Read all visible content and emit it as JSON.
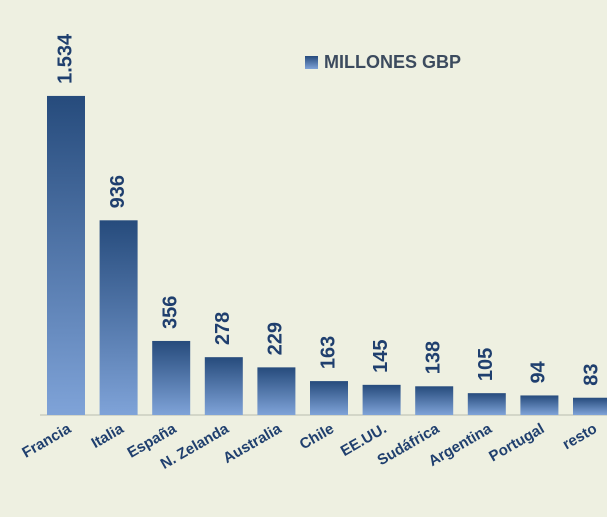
{
  "chart_data": {
    "type": "bar",
    "categories": [
      "Francia",
      "Italia",
      "España",
      "N. Zelanda",
      "Australia",
      "Chile",
      "EE.UU.",
      "Sudáfrica",
      "Argentina",
      "Portugal",
      "resto"
    ],
    "series": [
      {
        "name": "MILLONES GBP",
        "color": "#2f5a91",
        "values": [
          1534,
          936,
          356,
          278,
          229,
          163,
          145,
          138,
          105,
          94,
          83
        ],
        "value_labels": [
          "1.534",
          "936",
          "356",
          "278",
          "229",
          "163",
          "145",
          "138",
          "105",
          "94",
          "83"
        ]
      }
    ]
  }
}
